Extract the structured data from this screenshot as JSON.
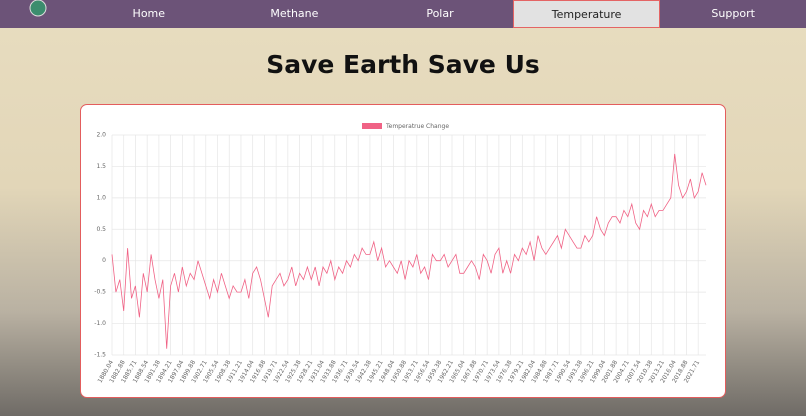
{
  "nav": [
    "Home",
    "Methane",
    "Polar",
    "Temperature",
    "Support"
  ],
  "heading": "Save Earth Save Us",
  "chart_data": {
    "type": "line",
    "series": [
      {
        "name": "Temperatrue Change",
        "color": "#f06285",
        "values": [
          0.1,
          -0.5,
          -0.3,
          -0.8,
          0.2,
          -0.6,
          -0.4,
          -0.9,
          -0.2,
          -0.5,
          0.1,
          -0.3,
          -0.6,
          -0.3,
          -1.4,
          -0.4,
          -0.2,
          -0.5,
          -0.1,
          -0.4,
          -0.2,
          -0.3,
          0.0,
          -0.2,
          -0.4,
          -0.6,
          -0.3,
          -0.5,
          -0.2,
          -0.4,
          -0.6,
          -0.4,
          -0.5,
          -0.5,
          -0.3,
          -0.6,
          -0.2,
          -0.1,
          -0.3,
          -0.6,
          -0.9,
          -0.4,
          -0.3,
          -0.2,
          -0.4,
          -0.3,
          -0.1,
          -0.4,
          -0.2,
          -0.3,
          -0.1,
          -0.3,
          -0.1,
          -0.4,
          -0.1,
          -0.2,
          0.0,
          -0.3,
          -0.1,
          -0.2,
          0.0,
          -0.1,
          0.1,
          0.0,
          0.2,
          0.1,
          0.1,
          0.3,
          0.0,
          0.2,
          -0.1,
          0.0,
          -0.1,
          -0.2,
          0.0,
          -0.3,
          0.0,
          -0.1,
          0.1,
          -0.2,
          -0.1,
          -0.3,
          0.1,
          0.0,
          0.0,
          0.1,
          -0.1,
          0.0,
          0.1,
          -0.2,
          -0.2,
          -0.1,
          0.0,
          -0.1,
          -0.3,
          0.1,
          0.0,
          -0.2,
          0.1,
          0.2,
          -0.2,
          0.0,
          -0.2,
          0.1,
          0.0,
          0.2,
          0.1,
          0.3,
          0.0,
          0.4,
          0.2,
          0.1,
          0.2,
          0.3,
          0.4,
          0.2,
          0.5,
          0.4,
          0.3,
          0.2,
          0.2,
          0.4,
          0.3,
          0.4,
          0.7,
          0.5,
          0.4,
          0.6,
          0.7,
          0.7,
          0.6,
          0.8,
          0.7,
          0.9,
          0.6,
          0.5,
          0.8,
          0.7,
          0.9,
          0.7,
          0.8,
          0.8,
          0.9,
          1.0,
          1.7,
          1.2,
          1.0,
          1.1,
          1.3,
          1.0,
          1.1,
          1.4,
          1.2
        ]
      }
    ],
    "categories": [
      "1880.04",
      null,
      null,
      "1882.88",
      null,
      null,
      "1885.71",
      null,
      null,
      "1888.54",
      null,
      null,
      "1891.38",
      null,
      null,
      "1894.21",
      null,
      null,
      "1897.04",
      null,
      null,
      "1899.88",
      null,
      null,
      "1902.71",
      null,
      null,
      "1905.54",
      null,
      null,
      "1908.38",
      null,
      null,
      "1911.21",
      null,
      null,
      "1914.04",
      null,
      null,
      "1916.88",
      null,
      null,
      "1919.71",
      null,
      null,
      "1922.54",
      null,
      null,
      "1925.38",
      null,
      null,
      "1928.21",
      null,
      null,
      "1931.04",
      null,
      null,
      "1933.88",
      null,
      null,
      "1936.71",
      null,
      null,
      "1939.54",
      null,
      null,
      "1942.38",
      null,
      null,
      "1945.21",
      null,
      null,
      "1948.04",
      null,
      null,
      "1950.88",
      null,
      null,
      "1953.71",
      null,
      null,
      "1956.54",
      null,
      null,
      "1959.38",
      null,
      null,
      "1962.21",
      null,
      null,
      "1965.04",
      null,
      null,
      "1967.88",
      null,
      null,
      "1970.71",
      null,
      null,
      "1973.54",
      null,
      null,
      "1976.38",
      null,
      null,
      "1979.21",
      null,
      null,
      "1982.04",
      null,
      null,
      "1984.88",
      null,
      null,
      "1987.71",
      null,
      null,
      "1990.54",
      null,
      null,
      "1993.38",
      null,
      null,
      "1996.21",
      null,
      null,
      "1999.04",
      null,
      null,
      "2001.88",
      null,
      null,
      "2004.71",
      null,
      null,
      "2007.54",
      null,
      null,
      "2010.38",
      null,
      null,
      "2013.21",
      null,
      null,
      "2016.04",
      null,
      null,
      "2018.88",
      null,
      null,
      "2021.71",
      null,
      null
    ],
    "ylim": [
      -1.5,
      2
    ],
    "yticks": [
      {
        "value": 2,
        "label": "2.0"
      },
      1.5,
      {
        "value": 1,
        "label": "1.0"
      },
      0.5,
      0,
      -0.5,
      {
        "value": -1,
        "label": "-1.0"
      },
      -1.5
    ],
    "grid": true,
    "legend": "top"
  }
}
